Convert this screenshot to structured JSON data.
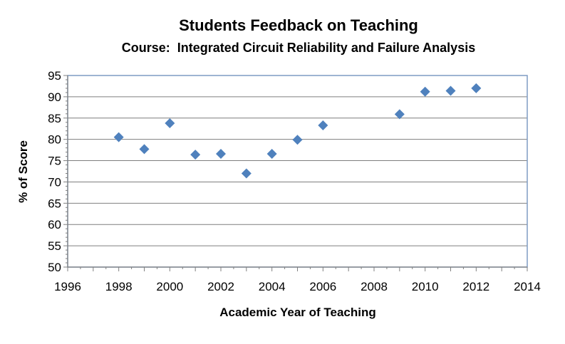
{
  "chart_data": {
    "type": "scatter",
    "title": "Students Feedback on Teaching",
    "subtitle": "Course:  Integrated Circuit Reliability and Failure Analysis",
    "xlabel": "Academic Year of Teaching",
    "ylabel": "% of Score",
    "xlim": [
      1996,
      2014
    ],
    "ylim": [
      50,
      95
    ],
    "x_ticks": [
      1996,
      1998,
      2000,
      2002,
      2004,
      2006,
      2008,
      2010,
      2012,
      2014
    ],
    "y_ticks": [
      50,
      55,
      60,
      65,
      70,
      75,
      80,
      85,
      90,
      95
    ],
    "grid": "horizontal",
    "legend": "none",
    "marker": "diamond",
    "marker_color": "#4f81bd",
    "x": [
      1998,
      1999,
      2000,
      2001,
      2002,
      2003,
      2004,
      2005,
      2006,
      2009,
      2010,
      2011,
      2012
    ],
    "y": [
      80.5,
      77.7,
      83.8,
      76.4,
      76.6,
      72.0,
      76.6,
      79.9,
      83.3,
      85.9,
      91.2,
      91.4,
      92.0
    ]
  }
}
